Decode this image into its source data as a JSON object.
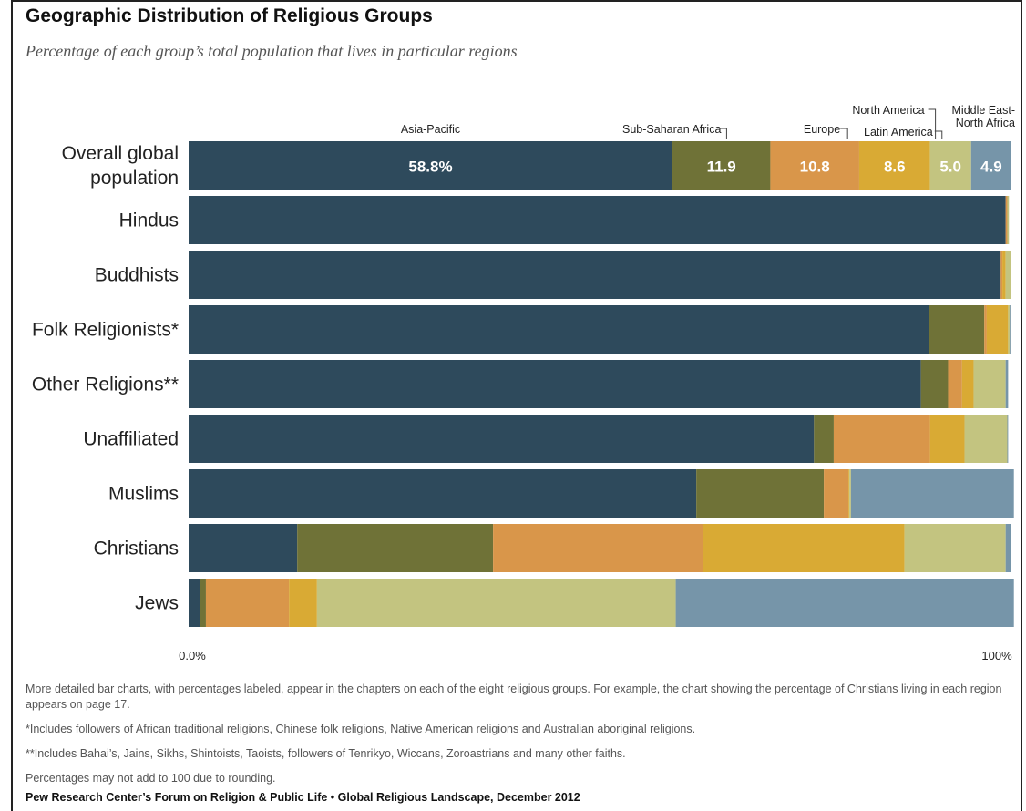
{
  "title": "Geographic Distribution of Religious Groups",
  "subtitle": "Percentage of each group’s total population that lives in particular regions",
  "chart_data": {
    "type": "bar",
    "orientation": "horizontal",
    "stacked": true,
    "categories": [
      "Overall global population",
      "Hindus",
      "Buddhists",
      "Folk Religionists*",
      "Other Religions**",
      "Unaffiliated",
      "Muslims",
      "Christians",
      "Jews"
    ],
    "series": [
      {
        "name": "Asia-Pacific",
        "color": "#2e4a5c",
        "values": [
          58.8,
          99.3,
          98.7,
          90.0,
          89.0,
          76.0,
          61.7,
          13.2,
          1.4
        ]
      },
      {
        "name": "Sub-Saharan Africa",
        "color": "#6f7237",
        "values": [
          11.9,
          0.0,
          0.0,
          6.7,
          3.3,
          2.4,
          15.5,
          23.8,
          0.7
        ]
      },
      {
        "name": "Europe",
        "color": "#d9964a",
        "values": [
          10.8,
          0.2,
          0.2,
          0.3,
          1.7,
          11.7,
          3.0,
          25.5,
          10.1
        ]
      },
      {
        "name": "Latin America",
        "color": "#d9aa34",
        "values": [
          8.6,
          0.0,
          0.4,
          2.6,
          1.4,
          4.2,
          0.1,
          24.5,
          3.4
        ]
      },
      {
        "name": "North America",
        "color": "#c3c480",
        "values": [
          5.0,
          0.2,
          0.7,
          0.2,
          3.9,
          5.2,
          0.2,
          12.3,
          43.6
        ]
      },
      {
        "name": "Middle East-North Africa",
        "color": "#7695a9",
        "values": [
          4.9,
          0.0,
          0.0,
          0.2,
          0.3,
          0.1,
          19.8,
          0.6,
          41.1
        ]
      }
    ],
    "overall_value_labels": [
      "58.8%",
      "11.9",
      "10.8",
      "8.6",
      "5.0",
      "4.9"
    ],
    "legend_labels": [
      "Asia-Pacific",
      "Sub-Saharan Africa",
      "Europe",
      "Latin America",
      "North America",
      "Middle East-",
      "North Africa"
    ],
    "xlim": [
      0,
      100
    ],
    "x_tick_labels": [
      "0.0%",
      "100%"
    ],
    "grid": false
  },
  "notes": [
    "More detailed bar charts, with percentages labeled, appear in the chapters on each of the eight religious groups. For example, the chart showing the percentage of Christians living in each region appears on page 17.",
    "*Includes followers of African traditional religions, Chinese folk religions, Native American religions and Australian aboriginal religions.",
    "**Includes Bahai’s, Jains, Sikhs, Shintoists, Taoists, followers of Tenrikyo, Wiccans, Zoroastrians and many other faiths.",
    "Percentages may not add to 100 due to rounding."
  ],
  "source": "Pew Research Center’s Forum on Religion & Public Life • Global Religious Landscape, December 2012"
}
